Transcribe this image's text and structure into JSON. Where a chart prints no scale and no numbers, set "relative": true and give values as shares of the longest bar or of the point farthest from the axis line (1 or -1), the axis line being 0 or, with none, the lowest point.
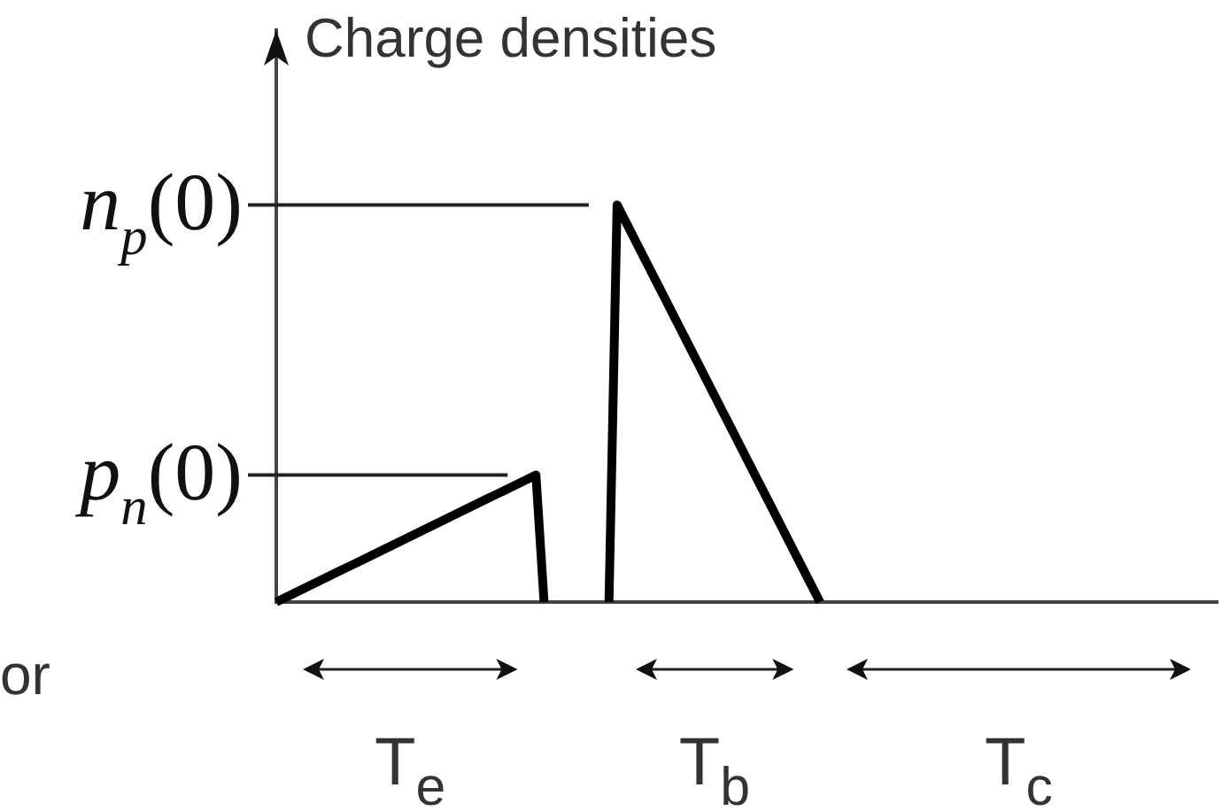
{
  "chart_data": {
    "type": "line",
    "ylabel": "Charge densities",
    "relative": true,
    "categories": [
      null,
      null,
      null,
      null,
      null,
      null,
      null,
      null,
      null,
      null,
      null,
      null,
      null,
      null,
      null,
      null,
      null,
      null,
      null,
      null,
      null,
      null,
      null,
      null,
      null,
      null,
      null,
      null,
      null,
      null,
      null,
      null,
      null,
      null,
      null,
      null,
      null,
      null,
      null,
      null,
      null,
      null,
      null,
      null,
      null,
      null,
      null,
      null,
      null,
      null,
      null,
      null,
      null,
      null,
      null,
      null,
      null,
      null,
      null,
      null,
      null,
      null,
      null,
      null,
      null,
      null,
      null,
      null,
      null,
      null,
      null,
      null,
      null,
      null,
      null,
      null,
      null,
      null,
      null,
      null,
      null,
      null,
      null,
      null,
      null,
      null,
      null,
      null,
      null,
      null,
      null,
      null,
      null,
      null,
      null,
      null,
      null,
      null,
      null,
      null,
      null,
      null,
      null,
      null,
      null,
      null,
      null,
      null,
      null,
      null,
      null,
      null,
      null,
      null,
      null,
      null,
      null
    ],
    "series": [
      {
        "color": "#000000",
        "values": [
          0,
          0.01,
          0.02,
          0.03,
          0.04,
          0.05,
          0.06,
          0.07,
          0.08,
          0.09,
          0.1,
          0.11,
          0.12,
          0.13,
          0.14,
          0.15,
          0.16,
          0.17,
          0.18,
          0.19,
          0.2,
          0.21,
          0.22,
          0.23,
          0.24,
          0.25,
          0.26,
          0.27,
          0.28,
          0.29,
          0.3,
          0.31,
          0.32,
          0,
          null,
          null,
          null,
          null,
          null,
          null,
          null,
          null,
          null,
          null,
          null,
          null,
          null,
          null,
          null,
          null,
          null,
          null,
          null,
          null,
          null,
          null,
          null,
          null,
          null,
          null,
          null,
          null,
          null,
          null,
          null,
          null,
          null,
          null,
          null,
          null,
          null,
          null,
          null,
          null,
          null,
          null,
          null,
          null,
          null,
          null,
          null,
          null,
          null,
          null,
          null,
          null,
          null,
          null,
          null,
          null,
          null,
          null,
          null,
          null,
          null,
          null,
          null,
          null,
          null,
          null,
          null,
          null,
          null,
          null,
          null,
          null,
          null,
          null,
          null,
          null,
          null,
          null,
          null,
          null,
          null,
          null,
          null
        ]
      },
      {
        "color": "#000000",
        "values": [
          null,
          null,
          null,
          null,
          null,
          null,
          null,
          null,
          null,
          null,
          null,
          null,
          null,
          null,
          null,
          null,
          null,
          null,
          null,
          null,
          null,
          null,
          null,
          null,
          null,
          null,
          null,
          null,
          null,
          null,
          null,
          null,
          null,
          null,
          null,
          null,
          null,
          null,
          null,
          null,
          null,
          0,
          1,
          0.96,
          0.92,
          0.88,
          0.84,
          0.8,
          0.76,
          0.72,
          0.68,
          0.64,
          0.6,
          0.56,
          0.52,
          0.48,
          0.44,
          0.4,
          0.36,
          0.32,
          0.28,
          0.24,
          0.2,
          0.16,
          0.12,
          0.08,
          0.04,
          0,
          null,
          null,
          null,
          null,
          null,
          null,
          null,
          null,
          null,
          null,
          null,
          null,
          null,
          null,
          null,
          null,
          null,
          null,
          null,
          null,
          null,
          null,
          null,
          null,
          null,
          null,
          null,
          null,
          null,
          null,
          null,
          null,
          null,
          null,
          null,
          null,
          null,
          null,
          null,
          null,
          null,
          null,
          null,
          null,
          null,
          null,
          null,
          null,
          null
        ]
      }
    ],
    "ref_lines": [
      {
        "axis": "y",
        "value": 1,
        "label": "n$_{p}$(0)"
      },
      {
        "axis": "y",
        "value": 0.32,
        "label": "p$_{n}$(0)"
      }
    ],
    "annotations": [
      "or",
      "T$_{e}$",
      "T$_{b}$",
      "T$_{c}$"
    ]
  }
}
